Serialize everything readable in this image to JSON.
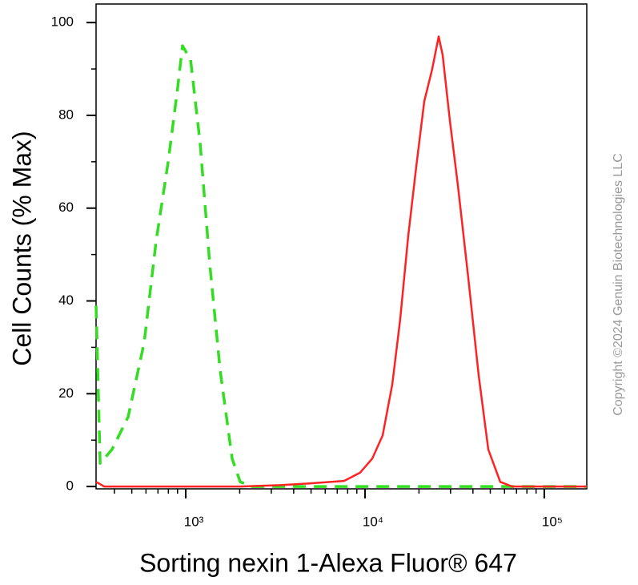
{
  "chart_data": {
    "type": "line",
    "xlabel": "Sorting nexin 1-Alexa Fluor® 647",
    "ylabel": "Cell Counts (% Max)",
    "watermark": "Copyright ©2024 Genuin Biotechnologies LLC",
    "xscale": "log",
    "xlim": [
      316,
      172600
    ],
    "ylim": [
      -0.5,
      104
    ],
    "xticks": [
      {
        "value": 1000,
        "label": "10³"
      },
      {
        "value": 10000,
        "label": "10⁴"
      },
      {
        "value": 100000,
        "label": "10⁵"
      }
    ],
    "xminorticks": [
      400,
      500,
      600,
      700,
      800,
      900,
      2000,
      3000,
      4000,
      5000,
      6000,
      7000,
      8000,
      9000,
      20000,
      30000,
      40000,
      50000,
      60000,
      70000,
      80000,
      90000
    ],
    "yticks": [
      0,
      20,
      40,
      60,
      80,
      100
    ],
    "yminorticks": [
      10,
      30,
      50,
      70,
      90
    ],
    "series": [
      {
        "color": "#33dd22",
        "dashed": true,
        "x": [
          316,
          333,
          388,
          477,
          586,
          684,
          798,
          902,
          959,
          1064,
          1203,
          1361,
          1556,
          1815,
          2013,
          2349,
          172600
        ],
        "values": [
          39,
          5,
          8,
          15,
          31,
          53,
          70,
          86,
          95,
          92,
          74,
          48,
          25,
          6,
          1,
          0,
          0
        ]
      },
      {
        "color": "#ff2222",
        "dashed": false,
        "x": [
          316,
          351,
          2013,
          3365,
          5070,
          7650,
          9400,
          10970,
          12540,
          14190,
          15710,
          17420,
          19320,
          21400,
          23710,
          25760,
          27110,
          29720,
          32950,
          37670,
          43050,
          48720,
          56790,
          66250,
          172600
        ],
        "values": [
          1,
          0,
          0,
          0.3,
          0.7,
          1.2,
          3,
          6,
          11,
          22,
          36,
          54,
          69,
          83,
          90,
          97,
          93,
          79,
          65,
          45,
          24,
          8,
          1,
          0,
          0
        ]
      }
    ]
  }
}
